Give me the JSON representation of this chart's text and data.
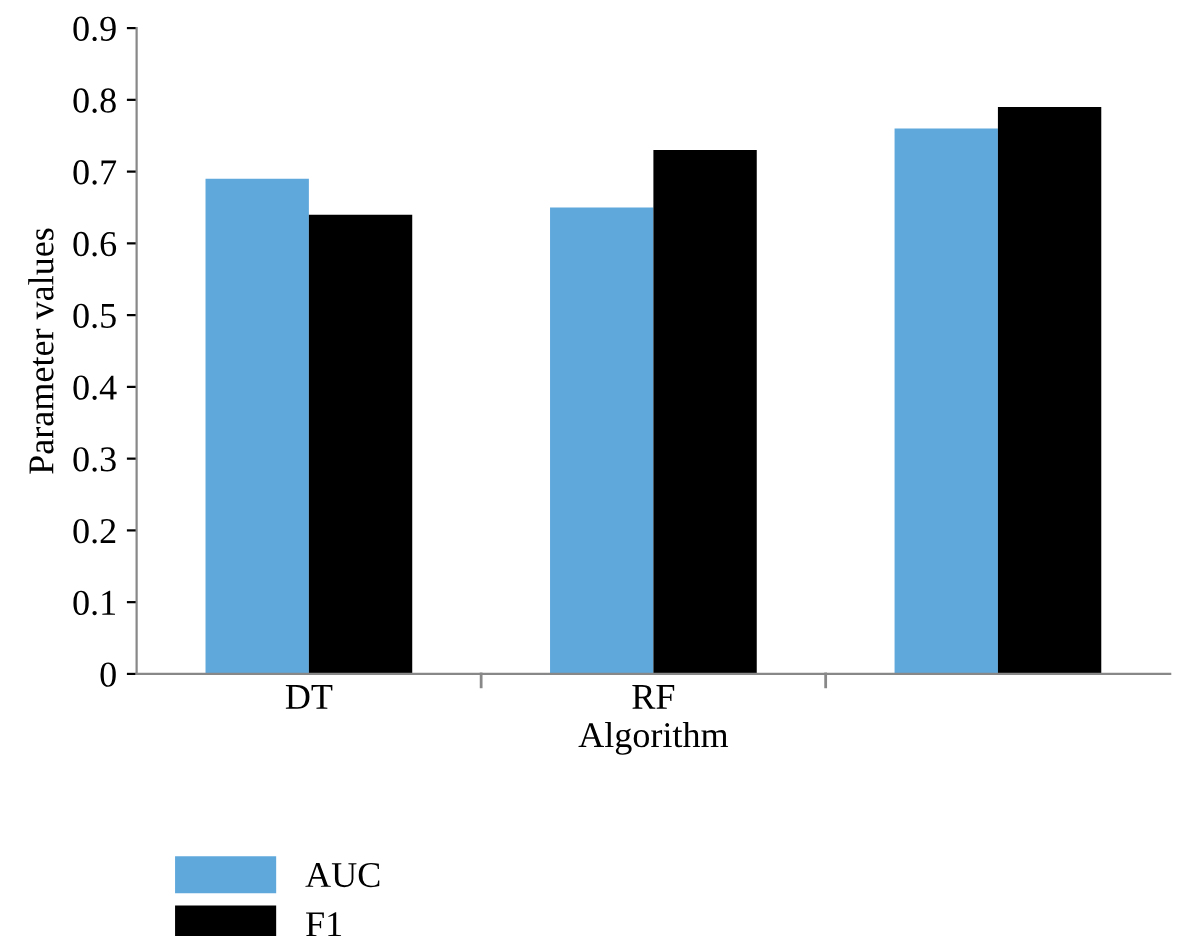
{
  "chart_data": {
    "type": "bar",
    "xlabel": "Algorithm",
    "ylabel": "Parameter values",
    "categories": [
      "DT",
      "RF",
      null
    ],
    "series": [
      {
        "name": "AUC",
        "color": "#5fa8dc",
        "values": [
          0.69,
          0.65,
          0.76
        ]
      },
      {
        "name": "F1",
        "color": "#000000",
        "values": [
          0.64,
          0.73,
          0.79
        ]
      }
    ],
    "ylim": [
      0,
      0.9
    ],
    "yticks": [
      0,
      0.1,
      0.2,
      0.3,
      0.4,
      0.5,
      0.6,
      0.7,
      0.8,
      0.9
    ],
    "grid": false,
    "legend": "bottom"
  }
}
